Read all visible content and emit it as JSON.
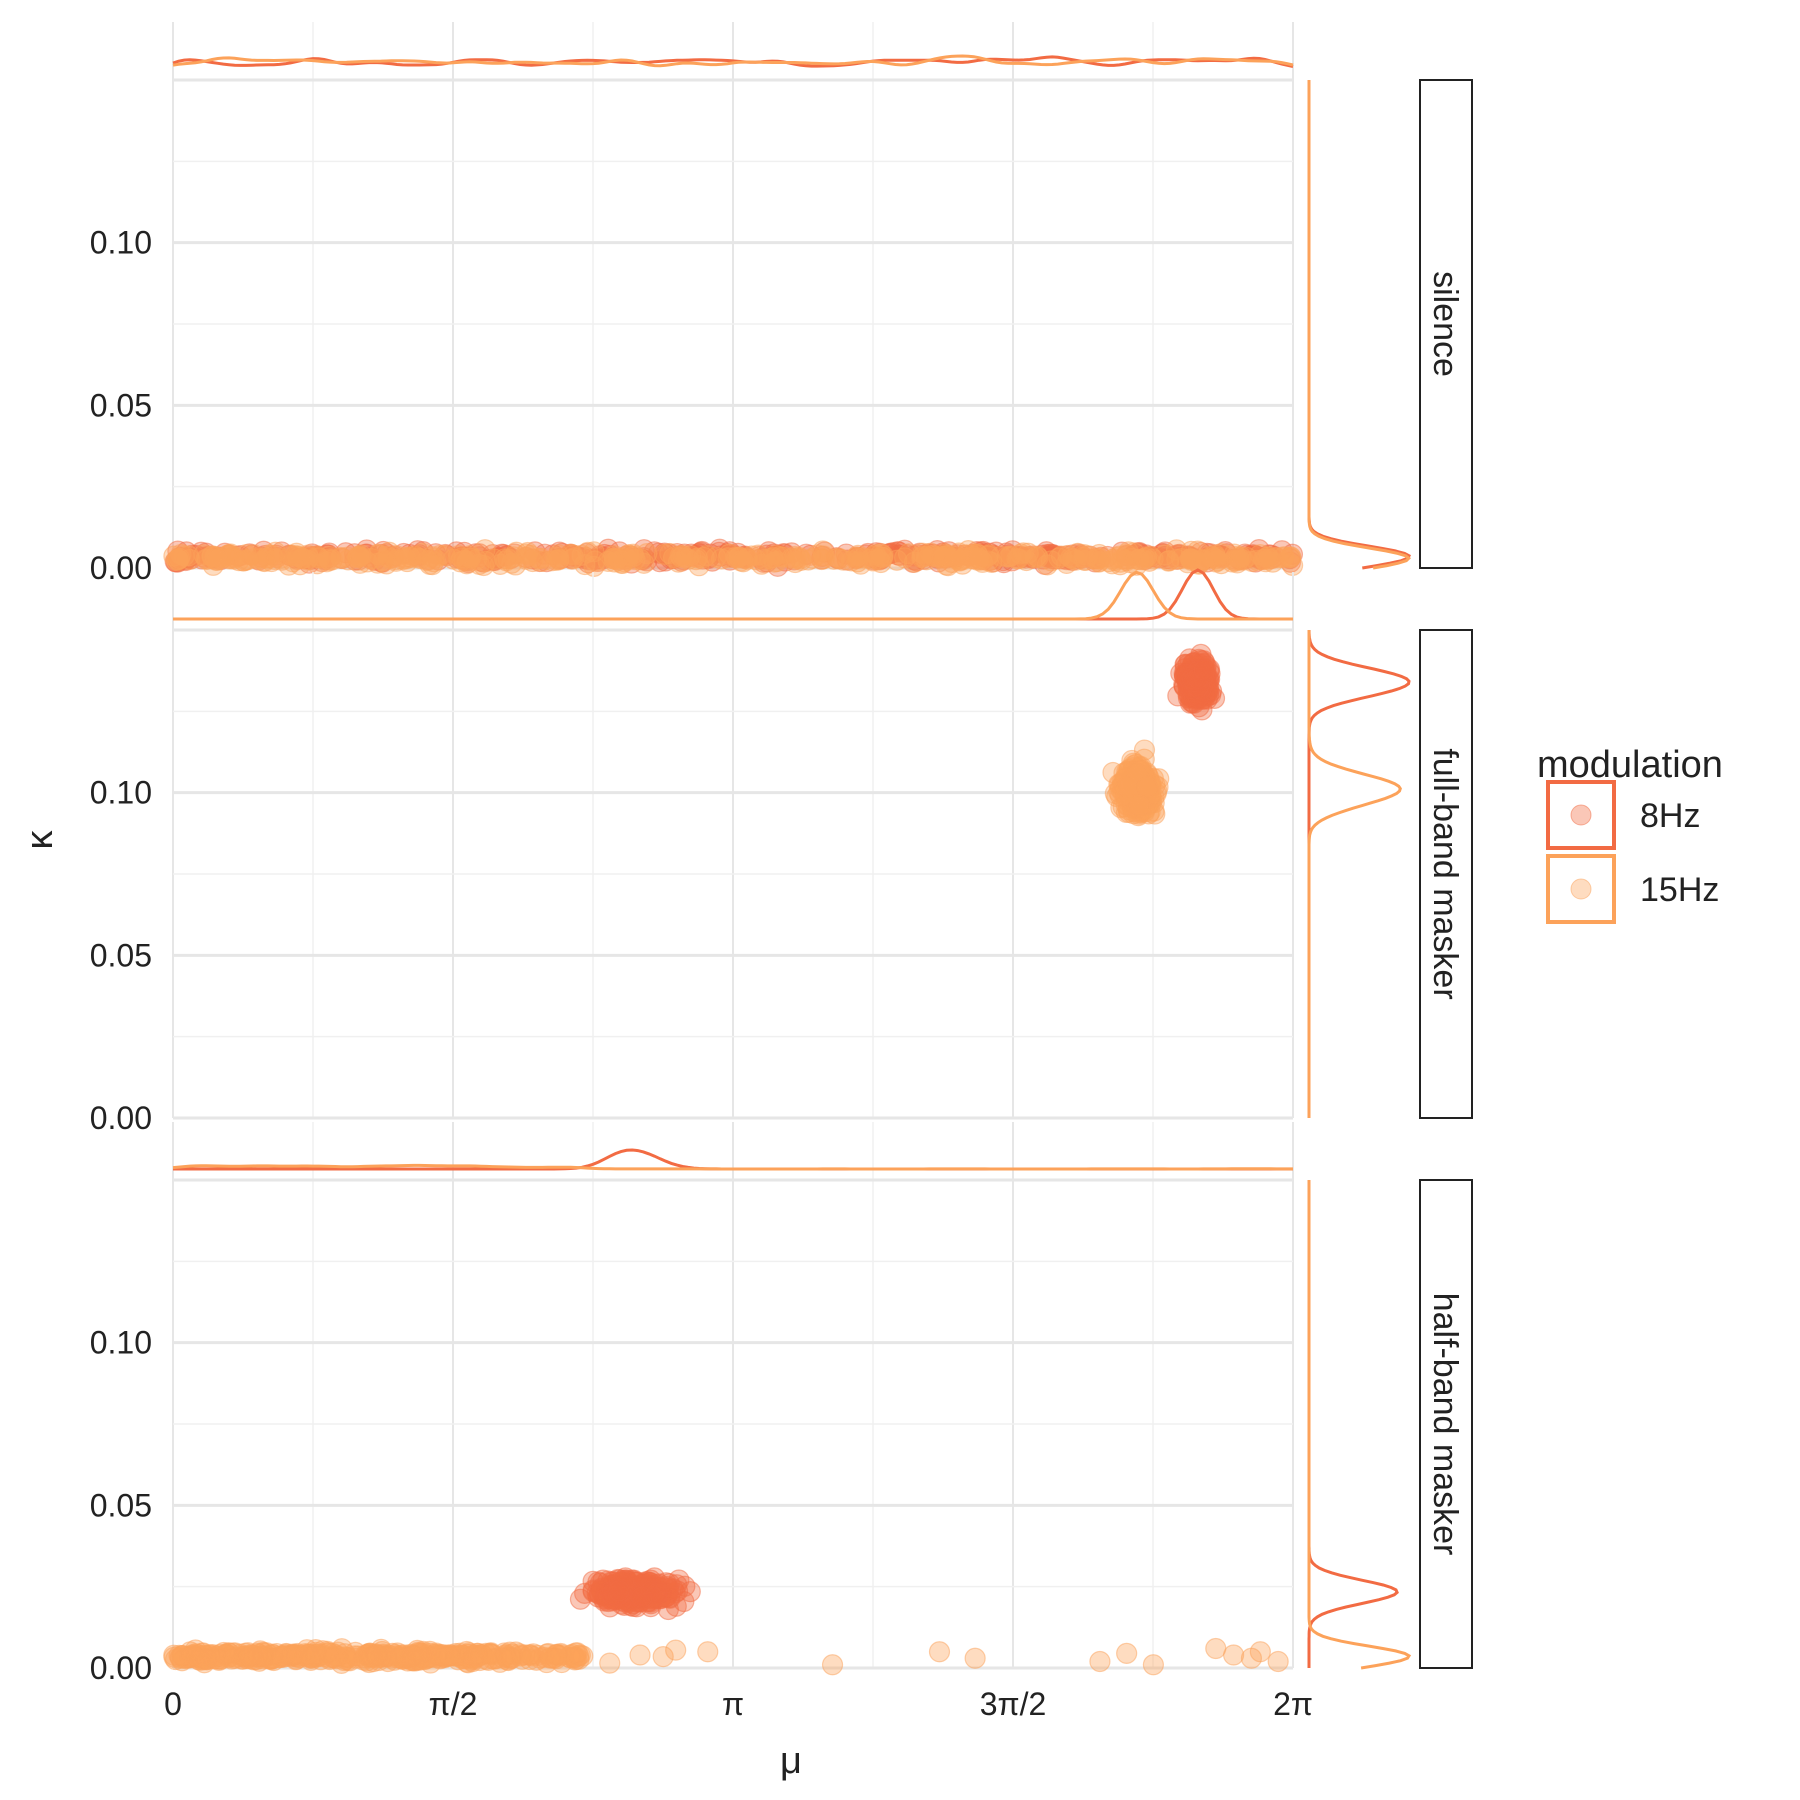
{
  "chart_data": {
    "type": "scatter",
    "xlabel": "μ",
    "ylabel": "κ",
    "xlim": [
      0,
      6.2832
    ],
    "ylim": [
      0,
      0.15
    ],
    "x_ticks": [
      {
        "value": 0,
        "label": "0"
      },
      {
        "value": 1.5708,
        "label": "π/2"
      },
      {
        "value": 3.1416,
        "label": "π"
      },
      {
        "value": 4.7124,
        "label": "3π/2"
      },
      {
        "value": 6.2832,
        "label": "2π"
      }
    ],
    "y_ticks": [
      {
        "value": 0,
        "label": "0.00"
      },
      {
        "value": 0.05,
        "label": "0.05"
      },
      {
        "value": 0.1,
        "label": "0.10"
      }
    ],
    "legend": {
      "title": "modulation",
      "position": "right",
      "entries": [
        {
          "name": "8Hz",
          "color": "#f26b43"
        },
        {
          "name": "15Hz",
          "color": "#fca25a"
        }
      ]
    },
    "grid": true,
    "marginal_densities": true,
    "panels": [
      {
        "name": "silence",
        "series": [
          {
            "name": "8Hz",
            "color": "#f26b43",
            "pattern": "uniform",
            "x_range": [
              0,
              6.2832
            ],
            "y_center": 0.0035,
            "y_spread": 0.003
          },
          {
            "name": "15Hz",
            "color": "#fca25a",
            "pattern": "uniform",
            "x_range": [
              0,
              6.2832
            ],
            "y_center": 0.003,
            "y_spread": 0.003
          }
        ]
      },
      {
        "name": "full-band masker",
        "series": [
          {
            "name": "8Hz",
            "color": "#f26b43",
            "pattern": "cluster",
            "x_center": 5.75,
            "x_spread": 0.06,
            "y_center": 0.134,
            "y_spread": 0.005
          },
          {
            "name": "15Hz",
            "color": "#fca25a",
            "pattern": "cluster",
            "x_center": 5.41,
            "x_spread": 0.08,
            "y_center": 0.101,
            "y_spread": 0.006
          }
        ]
      },
      {
        "name": "half-band masker",
        "series": [
          {
            "name": "8Hz",
            "color": "#f26b43",
            "pattern": "cluster",
            "x_center": 2.6,
            "x_spread": 0.2,
            "y_center": 0.0235,
            "y_spread": 0.003
          },
          {
            "name": "15Hz",
            "color": "#fca25a",
            "pattern": "low-band",
            "x_range": [
              0,
              2.3
            ],
            "y_center": 0.0035,
            "y_spread": 0.0025
          }
        ]
      }
    ]
  }
}
